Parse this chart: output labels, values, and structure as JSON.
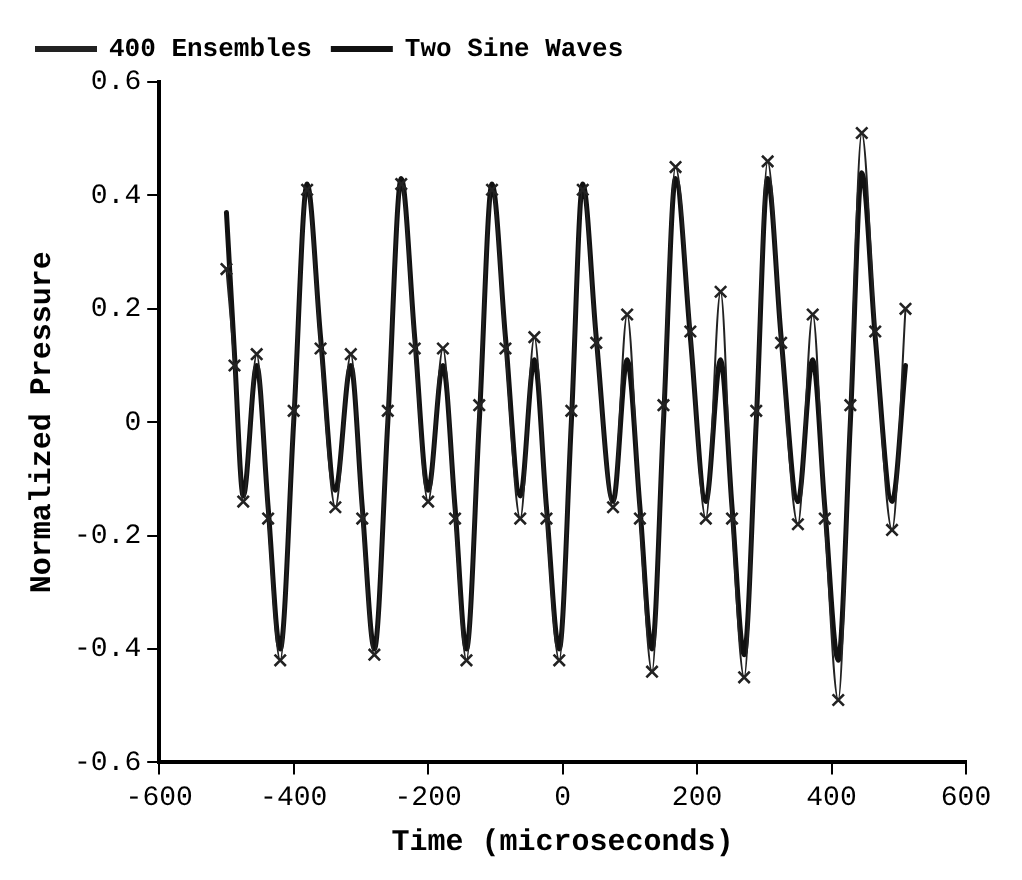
{
  "chart_data": {
    "type": "line",
    "xlabel": "Time (microseconds)",
    "ylabel": "Normalized Pressure",
    "xlim": [
      -600,
      600
    ],
    "xticks": [
      -600,
      -400,
      -200,
      0,
      200,
      400,
      600
    ],
    "ylim": [
      -0.6,
      0.6
    ],
    "yticks": [
      {
        "value": -0.6,
        "label": "-0.6"
      },
      {
        "value": -0.4,
        "label": "-0.4"
      },
      {
        "value": -0.2,
        "label": "-0.2"
      },
      0,
      0.2,
      0.4,
      0.6
    ],
    "grid": false,
    "legend": "top left",
    "series": [
      {
        "name": "400 Ensembles",
        "color": "#222222",
        "marker": "cross",
        "x": [
          -500,
          -488,
          -475,
          -455,
          -438,
          -420,
          -400,
          -380,
          -360,
          -338,
          -315,
          -298,
          -280,
          -260,
          -240,
          -220,
          -200,
          -178,
          -160,
          -143,
          -124,
          -105,
          -85,
          -63,
          -42,
          -24,
          -5,
          13,
          30,
          50,
          75,
          96,
          115,
          133,
          150,
          168,
          190,
          213,
          235,
          252,
          270,
          288,
          305,
          325,
          350,
          372,
          390,
          410,
          428,
          445,
          465,
          490,
          510
        ],
        "values": [
          0.27,
          0.1,
          -0.14,
          0.12,
          -0.17,
          -0.42,
          0.02,
          0.41,
          0.13,
          -0.15,
          0.12,
          -0.17,
          -0.41,
          0.02,
          0.42,
          0.13,
          -0.14,
          0.13,
          -0.17,
          -0.42,
          0.03,
          0.41,
          0.13,
          -0.17,
          0.15,
          -0.17,
          -0.42,
          0.02,
          0.41,
          0.14,
          -0.15,
          0.19,
          -0.17,
          -0.44,
          0.03,
          0.45,
          0.16,
          -0.17,
          0.23,
          -0.17,
          -0.45,
          0.02,
          0.46,
          0.14,
          -0.18,
          0.19,
          -0.17,
          -0.49,
          0.03,
          0.51,
          0.16,
          -0.19,
          0.2
        ]
      },
      {
        "name": "Two Sine Waves",
        "color": "#111111",
        "marker": "none",
        "x": [
          -500,
          -488,
          -475,
          -455,
          -438,
          -420,
          -400,
          -380,
          -360,
          -338,
          -315,
          -298,
          -280,
          -260,
          -240,
          -220,
          -200,
          -178,
          -160,
          -143,
          -124,
          -105,
          -85,
          -63,
          -42,
          -24,
          -5,
          13,
          30,
          50,
          75,
          96,
          115,
          133,
          150,
          168,
          190,
          213,
          235,
          252,
          270,
          288,
          305,
          325,
          350,
          372,
          390,
          410,
          428,
          445,
          465,
          490,
          510
        ],
        "values": [
          0.37,
          0.12,
          -0.13,
          0.1,
          -0.15,
          -0.4,
          0.0,
          0.42,
          0.15,
          -0.12,
          0.1,
          -0.15,
          -0.4,
          0.0,
          0.43,
          0.15,
          -0.12,
          0.1,
          -0.15,
          -0.4,
          0.0,
          0.42,
          0.15,
          -0.13,
          0.11,
          -0.15,
          -0.4,
          0.0,
          0.42,
          0.15,
          -0.14,
          0.11,
          -0.15,
          -0.4,
          0.0,
          0.43,
          0.15,
          -0.14,
          0.11,
          -0.15,
          -0.41,
          0.0,
          0.43,
          0.15,
          -0.14,
          0.11,
          -0.15,
          -0.42,
          0.0,
          0.44,
          0.15,
          -0.14,
          0.1
        ]
      }
    ]
  }
}
